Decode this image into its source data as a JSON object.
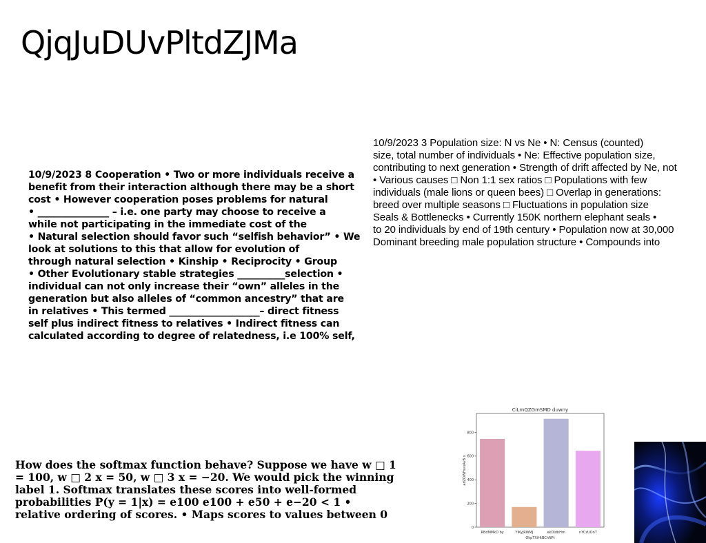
{
  "title": "QjqJuDUvPltdZJMa",
  "left_text": [
    "10/9/2023 8 Cooperation • Two or more individuals receive a",
    "benefit from their interaction although there may be a short",
    "cost • However cooperation poses problems for natural",
    "• _______________ – i.e. one party may choose to receive a",
    "while not participating in the immediate cost of the",
    "• Natural selection should favor such “selfish behavior” • We",
    "look at solutions to this that allow for evolution of",
    "through natural selection • Kinship • Reciprocity • Group",
    "• Other Evolutionary stable strategies __________selection •",
    "individual can not only increase their “own” alleles in the",
    "generation but also alleles of “common ancestry” that are",
    "in relatives • This termed ___________________– direct fitness",
    "self plus indirect fitness to relatives • Indirect fitness can",
    "calculated according to degree of relatedness, i.e 100% self,"
  ],
  "right_text": [
    "10/9/2023 3 Population size: N vs Ne • N: Census (counted)",
    "size, total number of individuals • Ne: Effective population size,",
    "contributing to next generation • Strength of drift affected by Ne, not",
    "• Various causes □ Non 1:1 sex ratios □ Populations with few",
    "individuals (male lions or queen bees) □ Overlap in generations:",
    "breed over multiple seasons □ Fluctuations in population size",
    "Seals & Bottlenecks • Currently 150K northern elephant seals •",
    "to 20 individuals by end of 19th century • Population now at 30,000",
    "Dominant breeding male population structure • Compounds into"
  ],
  "bottom_text": [
    "How does the softmax function behave? Suppose we have w □ 1",
    "= 100, w □ 2 x = 50, w □ 3 x = −20. We would pick the winning",
    "label 1. Softmax translates these scores into well-formed",
    "probabilities P(y = 1|x) = e100 e100 + e50 + e−20 < 1 •",
    "relative ordering of scores. • Maps scores to values between 0"
  ],
  "chart_data": {
    "type": "bar",
    "title": "CiLmQZGmSMD duwny",
    "xlabel": "OkpTXiHtBChNPt",
    "ylabel": "adZOWFsvuAvB x",
    "categories": [
      "RBdMMkD by",
      "YIKyJRWMJ",
      "ekDidbHm",
      "nYCzUOnT"
    ],
    "values": [
      745,
      170,
      915,
      645
    ],
    "colors": [
      "#dba0b4",
      "#e2b08f",
      "#b5b5d8",
      "#e8a8ef"
    ],
    "yticks": [
      0,
      200,
      400,
      600,
      800
    ],
    "ylim": [
      0,
      960
    ],
    "grid": false
  },
  "image": {
    "name": "abstract-blue-wave-image"
  }
}
